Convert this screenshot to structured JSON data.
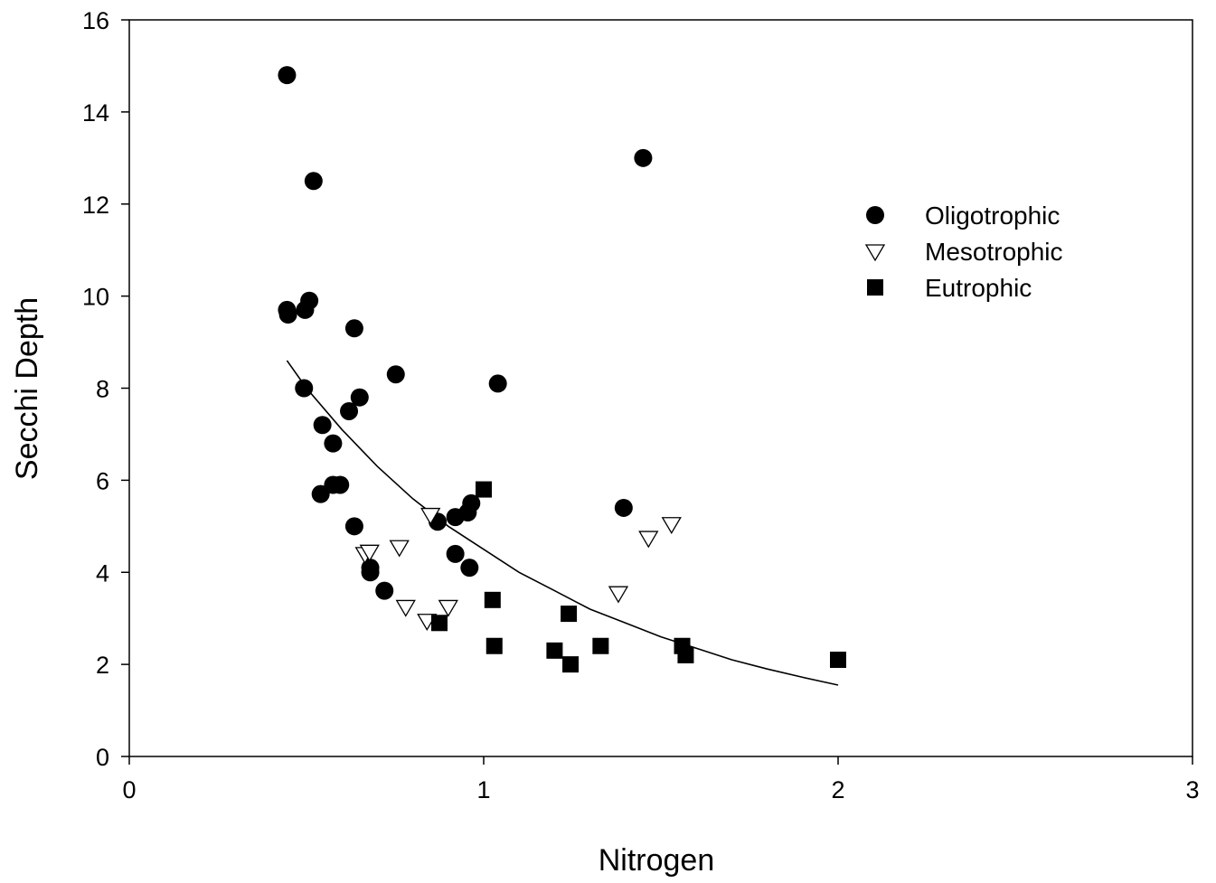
{
  "chart_data": {
    "type": "scatter",
    "title": "",
    "xlabel": "Nitrogen",
    "ylabel": "Secchi Depth",
    "xlim": [
      0,
      3
    ],
    "ylim": [
      0,
      16
    ],
    "xticks": [
      0,
      1,
      2,
      3
    ],
    "yticks": [
      0,
      2,
      4,
      6,
      8,
      10,
      12,
      14,
      16
    ],
    "xtick_labels": [
      "0",
      "1",
      "2",
      "3"
    ],
    "ytick_labels": [
      "0",
      "2",
      "4",
      "6",
      "8",
      "10",
      "12",
      "14",
      "16"
    ],
    "grid": false,
    "legend_position": "top-right",
    "series": [
      {
        "name": "Oligotrophic",
        "marker": "circle",
        "color": "#000000",
        "points": [
          [
            0.445,
            14.8
          ],
          [
            0.52,
            12.5
          ],
          [
            1.45,
            13.0
          ],
          [
            0.445,
            9.7
          ],
          [
            0.448,
            9.6
          ],
          [
            0.496,
            9.7
          ],
          [
            0.508,
            9.9
          ],
          [
            0.635,
            9.3
          ],
          [
            0.752,
            8.3
          ],
          [
            0.493,
            8.0
          ],
          [
            1.04,
            8.1
          ],
          [
            0.62,
            7.5
          ],
          [
            0.65,
            7.8
          ],
          [
            0.545,
            7.2
          ],
          [
            0.575,
            6.8
          ],
          [
            0.575,
            5.9
          ],
          [
            0.595,
            5.9
          ],
          [
            0.54,
            5.7
          ],
          [
            0.635,
            5.0
          ],
          [
            1.395,
            5.4
          ],
          [
            0.87,
            5.1
          ],
          [
            0.92,
            5.2
          ],
          [
            0.955,
            5.3
          ],
          [
            0.965,
            5.5
          ],
          [
            0.92,
            4.4
          ],
          [
            0.96,
            4.1
          ],
          [
            0.68,
            4.1
          ],
          [
            0.68,
            4.0
          ],
          [
            0.72,
            3.6
          ]
        ]
      },
      {
        "name": "Mesotrophic",
        "marker": "triangle-down-open",
        "color": "#000000",
        "points": [
          [
            0.665,
            4.4
          ],
          [
            0.678,
            4.45
          ],
          [
            0.762,
            4.55
          ],
          [
            0.85,
            5.25
          ],
          [
            0.78,
            3.25
          ],
          [
            0.84,
            2.95
          ],
          [
            0.9,
            3.25
          ],
          [
            1.38,
            3.55
          ],
          [
            1.465,
            4.75
          ],
          [
            1.53,
            5.05
          ]
        ]
      },
      {
        "name": "Eutrophic",
        "marker": "square",
        "color": "#000000",
        "points": [
          [
            1.0,
            5.8
          ],
          [
            1.025,
            3.4
          ],
          [
            1.03,
            2.4
          ],
          [
            0.875,
            2.9
          ],
          [
            1.2,
            2.3
          ],
          [
            1.245,
            2.0
          ],
          [
            1.24,
            3.1
          ],
          [
            1.33,
            2.4
          ],
          [
            1.56,
            2.4
          ],
          [
            1.57,
            2.2
          ],
          [
            2.0,
            2.1
          ]
        ]
      }
    ],
    "fit_curve": {
      "description": "exponential decay fit",
      "x_range": [
        0.445,
        2.0
      ],
      "points": [
        [
          0.445,
          8.6
        ],
        [
          0.5,
          8.0
        ],
        [
          0.6,
          7.1
        ],
        [
          0.7,
          6.3
        ],
        [
          0.8,
          5.6
        ],
        [
          0.9,
          5.0
        ],
        [
          1.0,
          4.5
        ],
        [
          1.1,
          4.0
        ],
        [
          1.2,
          3.6
        ],
        [
          1.3,
          3.2
        ],
        [
          1.4,
          2.9
        ],
        [
          1.5,
          2.6
        ],
        [
          1.6,
          2.35
        ],
        [
          1.7,
          2.1
        ],
        [
          1.8,
          1.9
        ],
        [
          1.9,
          1.72
        ],
        [
          2.0,
          1.55
        ]
      ]
    }
  }
}
